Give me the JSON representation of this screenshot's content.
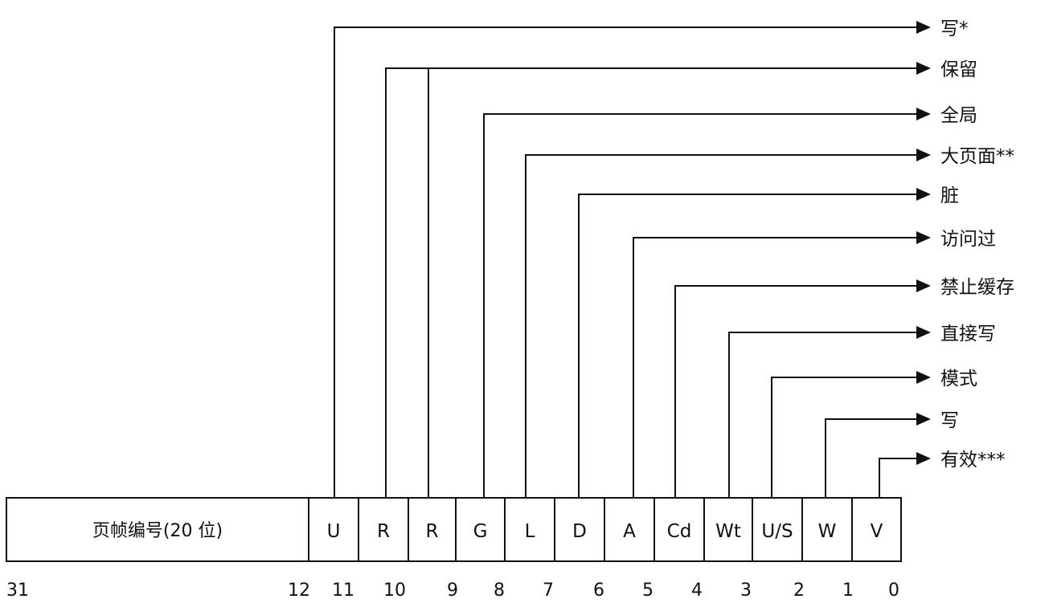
{
  "diagram": {
    "frame_field": {
      "label": "页帧编号(20 位)",
      "high_bit": "31",
      "low_bit": "12"
    },
    "bits": [
      {
        "field": "U",
        "bit": "11",
        "meaning": "写*"
      },
      {
        "field": "R",
        "bit": "10",
        "meaning": "保留"
      },
      {
        "field": "R",
        "bit": "9",
        "meaning": "保留"
      },
      {
        "field": "G",
        "bit": "8",
        "meaning": "全局"
      },
      {
        "field": "L",
        "bit": "7",
        "meaning": "大页面**"
      },
      {
        "field": "D",
        "bit": "6",
        "meaning": "脏"
      },
      {
        "field": "A",
        "bit": "5",
        "meaning": "访问过"
      },
      {
        "field": "Cd",
        "bit": "4",
        "meaning": "禁止缓存"
      },
      {
        "field": "Wt",
        "bit": "3",
        "meaning": "直接写"
      },
      {
        "field": "U/S",
        "bit": "2",
        "meaning": "模式"
      },
      {
        "field": "W",
        "bit": "1",
        "meaning": "写"
      },
      {
        "field": "V",
        "bit": "0",
        "meaning": "有效***"
      }
    ],
    "labels": [
      "写*",
      "保留",
      "全局",
      "大页面**",
      "脏",
      "访问过",
      "禁止缓存",
      "直接写",
      "模式",
      "写",
      "有效***"
    ],
    "colors": {
      "line": "#111111",
      "background": "#ffffff"
    }
  }
}
